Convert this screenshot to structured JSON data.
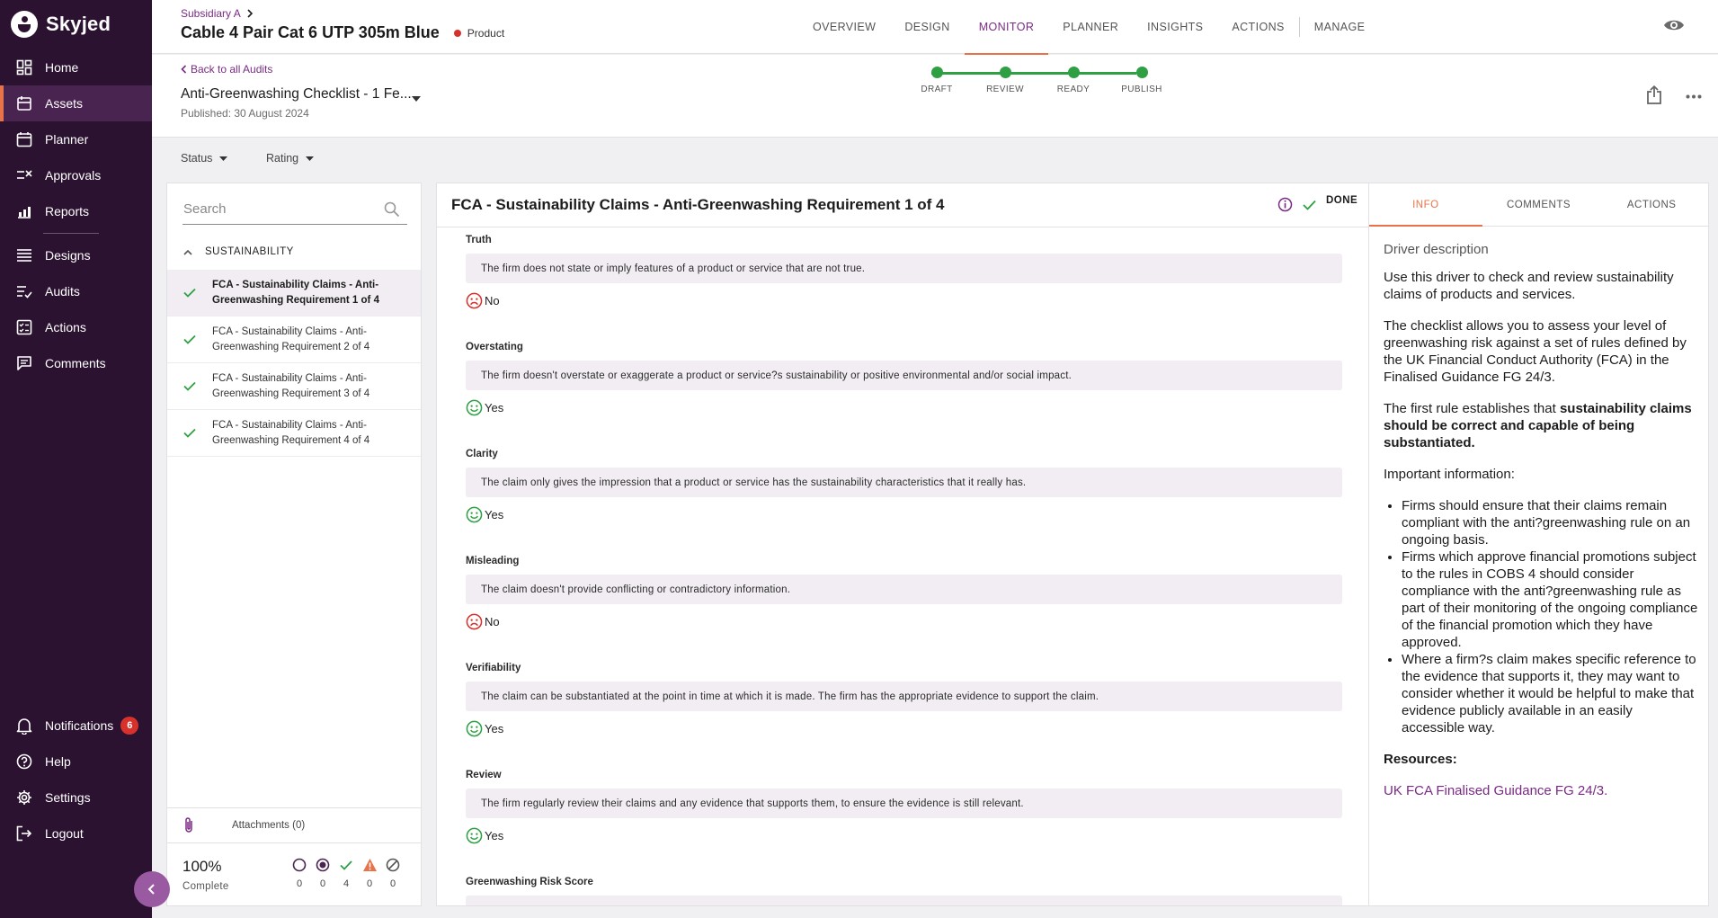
{
  "brand": {
    "name": "Skyjed"
  },
  "sidebar": {
    "items": [
      {
        "label": "Home",
        "icon": "dashboard-icon"
      },
      {
        "label": "Assets",
        "icon": "assets-icon"
      },
      {
        "label": "Planner",
        "icon": "calendar-icon"
      },
      {
        "label": "Approvals",
        "icon": "approvals-icon"
      },
      {
        "label": "Reports",
        "icon": "reports-icon"
      },
      {
        "label": "Designs",
        "icon": "designs-icon"
      },
      {
        "label": "Audits",
        "icon": "audits-icon"
      },
      {
        "label": "Actions",
        "icon": "actions-icon"
      },
      {
        "label": "Comments",
        "icon": "comments-icon"
      }
    ],
    "bottom_items": [
      {
        "label": "Notifications",
        "icon": "bell-icon",
        "badge": "6"
      },
      {
        "label": "Help",
        "icon": "help-icon"
      },
      {
        "label": "Settings",
        "icon": "gear-icon"
      },
      {
        "label": "Logout",
        "icon": "logout-icon"
      }
    ]
  },
  "header": {
    "breadcrumb": "Subsidiary A",
    "title": "Cable 4 Pair Cat 6 UTP 305m Blue",
    "tag": "Product",
    "tabs": [
      "OVERVIEW",
      "DESIGN",
      "MONITOR",
      "PLANNER",
      "INSIGHTS",
      "ACTIONS",
      "MANAGE"
    ],
    "active_tab": "MONITOR"
  },
  "audit": {
    "back_label": "Back to all Audits",
    "title": "Anti-Greenwashing Checklist - 1 Fe...",
    "published": "Published: 30 August 2024",
    "steps": [
      "DRAFT",
      "REVIEW",
      "READY",
      "PUBLISH"
    ]
  },
  "filters": {
    "status": "Status",
    "rating": "Rating"
  },
  "left_panel": {
    "search_placeholder": "Search",
    "group": "SUSTAINABILITY",
    "items": [
      "FCA - Sustainability Claims - Anti-Greenwashing Requirement 1 of 4",
      "FCA - Sustainability Claims - Anti-Greenwashing Requirement 2 of 4",
      "FCA - Sustainability Claims - Anti-Greenwashing Requirement 3 of 4",
      "FCA - Sustainability Claims - Anti-Greenwashing Requirement 4 of 4"
    ],
    "attachments": "Attachments (0)",
    "percent": "100%",
    "percent_label": "Complete",
    "stats": [
      "0",
      "0",
      "4",
      "0",
      "0"
    ]
  },
  "main": {
    "title": "FCA - Sustainability Claims - Anti-Greenwashing Requirement 1 of 4",
    "done_label": "DONE",
    "questions": [
      {
        "title": "Truth",
        "text": "The firm does not state or imply features of a product or service that are not true.",
        "answer": "No"
      },
      {
        "title": "Overstating",
        "text": "The firm doesn't overstate or exaggerate a product or service?s sustainability or positive environmental and/or social impact.",
        "answer": "Yes"
      },
      {
        "title": "Clarity",
        "text": "The claim only gives the impression that a product or service has the sustainability characteristics that it really has.",
        "answer": "Yes"
      },
      {
        "title": "Misleading",
        "text": "The claim doesn't provide conflicting or contradictory information.",
        "answer": "No"
      },
      {
        "title": "Verifiability",
        "text": "The claim can be substantiated at the point in time at which it is made. The firm has the appropriate evidence to support the claim.",
        "answer": "Yes"
      },
      {
        "title": "Review",
        "text": "The firm regularly review their claims and any evidence that supports them, to ensure the evidence is still relevant.",
        "answer": "Yes"
      },
      {
        "title": "Greenwashing Risk Score",
        "text": "",
        "answer": ""
      }
    ]
  },
  "info_panel": {
    "tabs": [
      "INFO",
      "COMMENTS",
      "ACTIONS"
    ],
    "driver_label": "Driver description",
    "p1": "Use this driver to check and review sustainability claims of products and services.",
    "p2": "The checklist allows you to assess your level of greenwashing risk against a set of rules defined by the UK Financial Conduct Authority (FCA) in the Finalised Guidance FG 24/3.",
    "p3_prefix": "The first rule establishes that ",
    "p3_bold": "sustainability claims should be correct and capable of being substantiated.",
    "important": "Important information:",
    "bullets": [
      "Firms should ensure that their claims remain compliant with the anti?greenwashing rule on an ongoing basis.",
      "Firms which approve financial promotions subject to the rules in COBS 4 should consider compliance with the anti?greenwashing rule as part of their monitoring of the ongoing compliance of the financial promotion which they have approved.",
      "Where a firm?s claim makes specific reference to the evidence that supports it, they may want to consider whether it would be helpful to make that evidence publicly available in an easily accessible way."
    ],
    "resources": "Resources:",
    "link": "UK FCA Finalised Guidance FG 24/3."
  },
  "colors": {
    "sidebar": "#2b1230",
    "accent": "#7a2a84",
    "orange": "#e8734a",
    "green": "#2ea043",
    "red": "#d6312b"
  }
}
